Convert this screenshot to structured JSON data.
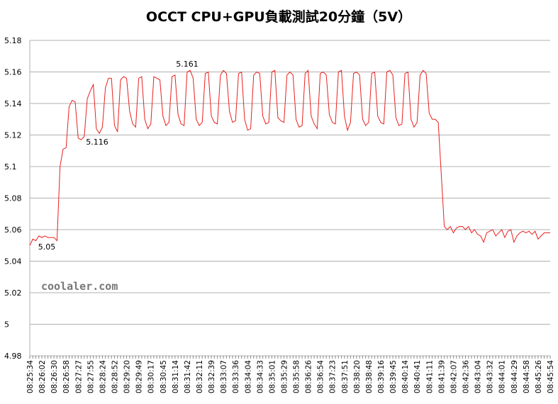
{
  "chart_data": {
    "type": "line",
    "title": "OCCT CPU+GPU負載測試20分鐘（5V）",
    "watermark": "coolaler.com",
    "annotations": [
      "5.161",
      "5.116",
      "5.05"
    ],
    "color": "#e8201e",
    "ylim": [
      4.98,
      5.18
    ],
    "yticks": [
      4.98,
      5,
      5.02,
      5.04,
      5.06,
      5.08,
      5.1,
      5.12,
      5.14,
      5.16,
      5.18
    ],
    "grid": true,
    "categories": [
      "08:25:34",
      null,
      null,
      null,
      "08:26:02",
      null,
      null,
      null,
      "08:26:30",
      null,
      null,
      null,
      "08:26:58",
      null,
      null,
      null,
      "08:27:27",
      null,
      null,
      null,
      "08:27:55",
      null,
      null,
      null,
      "08:28:24",
      null,
      null,
      null,
      "08:28:52",
      null,
      null,
      null,
      "08:29:20",
      null,
      null,
      null,
      "08:29:49",
      null,
      null,
      null,
      "08:30:17",
      null,
      null,
      null,
      "08:30:45",
      null,
      null,
      null,
      "08:31:14",
      null,
      null,
      null,
      "08:31:42",
      null,
      null,
      null,
      "08:32:11",
      null,
      null,
      null,
      "08:32:39",
      null,
      null,
      null,
      "08:33:07",
      null,
      null,
      null,
      "08:33:36",
      null,
      null,
      null,
      "08:34:04",
      null,
      null,
      null,
      "08:34:33",
      null,
      null,
      null,
      "08:35:01",
      null,
      null,
      null,
      "08:35:29",
      null,
      null,
      null,
      "08:35:58",
      null,
      null,
      null,
      "08:36:26",
      null,
      null,
      null,
      "08:36:54",
      null,
      null,
      null,
      "08:37:23",
      null,
      null,
      null,
      "08:37:51",
      null,
      null,
      null,
      "08:38:20",
      null,
      null,
      null,
      "08:38:48",
      null,
      null,
      null,
      "08:39:16",
      null,
      null,
      null,
      "08:39:45",
      null,
      null,
      null,
      "08:40:14",
      null,
      null,
      null,
      "08:40:41",
      null,
      null,
      null,
      "08:41:11",
      null,
      null,
      null,
      "08:41:39",
      null,
      null,
      null,
      "08:42:07",
      null,
      null,
      null,
      "08:42:36",
      null,
      null,
      null,
      "08:43:04",
      null,
      null,
      null,
      "08:43:32",
      null,
      null,
      null,
      "08:44:01",
      null,
      null,
      null,
      "08:44:29",
      null,
      null,
      null,
      "08:44:58",
      null,
      null,
      null,
      "08:45:26",
      null,
      null,
      null,
      "08:45:54"
    ],
    "values": [
      5.05,
      5.054,
      5.053,
      5.056,
      5.055,
      5.056,
      5.055,
      5.055,
      5.055,
      5.053,
      5.1,
      5.111,
      5.112,
      5.138,
      5.142,
      5.141,
      5.118,
      5.117,
      5.119,
      5.143,
      5.148,
      5.152,
      5.124,
      5.121,
      5.125,
      5.15,
      5.156,
      5.156,
      5.126,
      5.122,
      5.155,
      5.157,
      5.156,
      5.135,
      5.127,
      5.125,
      5.156,
      5.157,
      5.13,
      5.124,
      5.127,
      5.157,
      5.156,
      5.155,
      5.132,
      5.126,
      5.128,
      5.157,
      5.158,
      5.133,
      5.127,
      5.126,
      5.16,
      5.161,
      5.156,
      5.13,
      5.126,
      5.128,
      5.159,
      5.16,
      5.132,
      5.128,
      5.127,
      5.158,
      5.161,
      5.159,
      5.135,
      5.128,
      5.129,
      5.159,
      5.16,
      5.13,
      5.123,
      5.124,
      5.158,
      5.16,
      5.159,
      5.132,
      5.127,
      5.128,
      5.16,
      5.161,
      5.131,
      5.129,
      5.128,
      5.158,
      5.16,
      5.158,
      5.13,
      5.125,
      5.126,
      5.159,
      5.161,
      5.132,
      5.127,
      5.124,
      5.159,
      5.16,
      5.158,
      5.133,
      5.128,
      5.127,
      5.16,
      5.161,
      5.132,
      5.123,
      5.128,
      5.159,
      5.16,
      5.158,
      5.13,
      5.126,
      5.128,
      5.159,
      5.16,
      5.132,
      5.128,
      5.127,
      5.16,
      5.161,
      5.158,
      5.131,
      5.126,
      5.127,
      5.159,
      5.16,
      5.13,
      5.125,
      5.128,
      5.158,
      5.161,
      5.159,
      5.134,
      5.13,
      5.13,
      5.128,
      5.095,
      5.062,
      5.06,
      5.062,
      5.058,
      5.061,
      5.062,
      5.062,
      5.06,
      5.062,
      5.058,
      5.06,
      5.057,
      5.056,
      5.052,
      5.058,
      5.059,
      5.06,
      5.056,
      5.058,
      5.06,
      5.055,
      5.059,
      5.06,
      5.052,
      5.056,
      5.058,
      5.059,
      5.058,
      5.059,
      5.057,
      5.059,
      5.054,
      5.056,
      5.058,
      5.058,
      5.058
    ]
  }
}
